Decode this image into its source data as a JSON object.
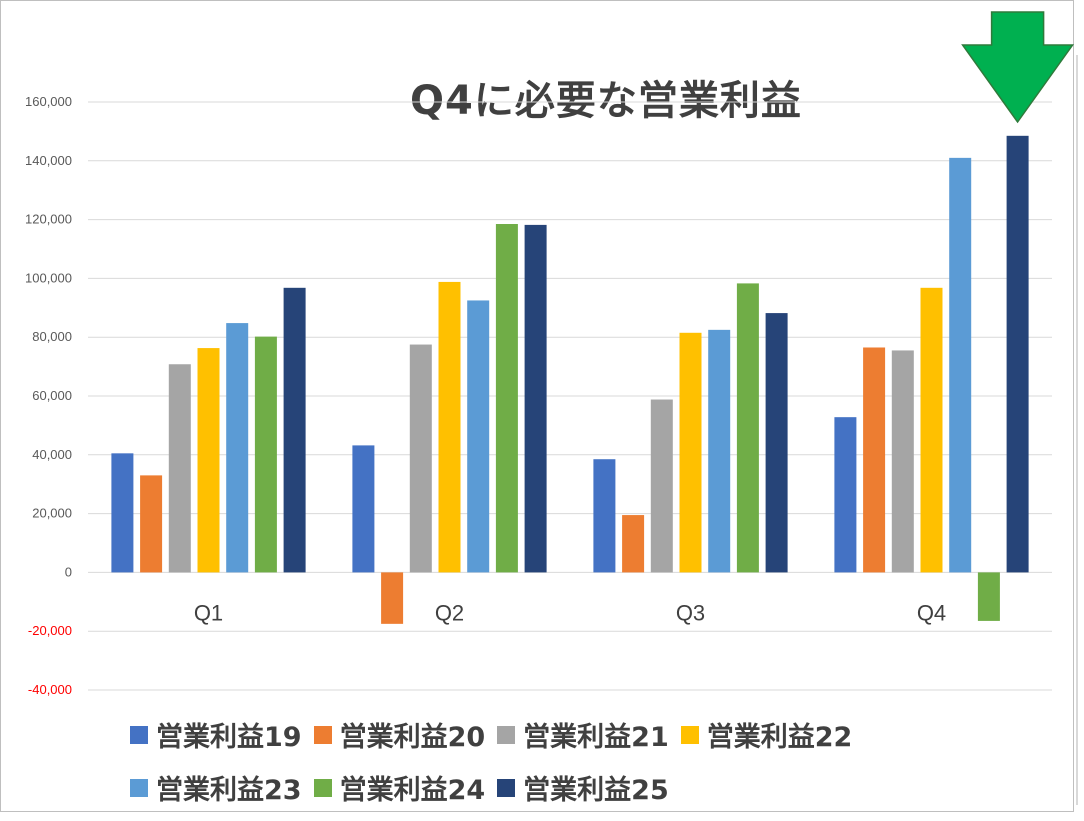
{
  "chart_data": {
    "type": "bar",
    "title": "Q4に必要な営業利益",
    "categories": [
      "Q1",
      "Q2",
      "Q3",
      "Q4"
    ],
    "series": [
      {
        "name": "営業利益19",
        "color": "#4472c4",
        "values": [
          40500,
          43200,
          38500,
          52800
        ]
      },
      {
        "name": "営業利益20",
        "color": "#ed7d31",
        "values": [
          33000,
          -17500,
          19500,
          76500
        ]
      },
      {
        "name": "営業利益21",
        "color": "#a5a5a5",
        "values": [
          70800,
          77500,
          58800,
          75500
        ]
      },
      {
        "name": "営業利益22",
        "color": "#ffc000",
        "values": [
          76300,
          98800,
          81500,
          96800
        ]
      },
      {
        "name": "営業利益23",
        "color": "#5b9bd5",
        "values": [
          84800,
          92500,
          82500,
          141000
        ]
      },
      {
        "name": "営業利益24",
        "color": "#70ad47",
        "values": [
          80200,
          118500,
          98300,
          -16500
        ]
      },
      {
        "name": "営業利益25",
        "color": "#264478",
        "values": [
          96800,
          118200,
          88200,
          148500
        ]
      }
    ],
    "yticks": [
      "160,000",
      "140,000",
      "120,000",
      "100,000",
      "80,000",
      "60,000",
      "40,000",
      "20,000",
      "0",
      "-20,000",
      "-40,000"
    ],
    "ytick_values": [
      160000,
      140000,
      120000,
      100000,
      80000,
      60000,
      40000,
      20000,
      0,
      -20000,
      -40000
    ],
    "ylim": [
      -40000,
      160000
    ],
    "grid": true,
    "legend": "bottom",
    "negative_tick_color": "#ff0000",
    "positive_tick_color": "#595959",
    "arrow_color": "#00b050"
  }
}
